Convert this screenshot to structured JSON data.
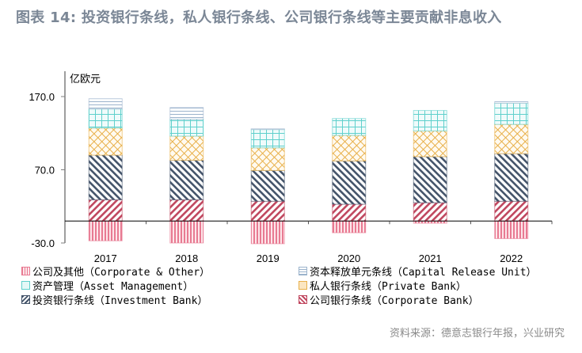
{
  "title": "图表 14: 投资银行条线，私人银行条线、公司银行条线等主要贡献非息收入",
  "source": "资料来源：德意志银行年报，兴业研究",
  "chart_data": {
    "type": "bar",
    "stacked": true,
    "title": "图表 14: 投资银行条线，私人银行条线、公司银行条线等主要贡献非息收入",
    "ylabel": "亿欧元",
    "xlabel": "",
    "ylim": [
      -30,
      170
    ],
    "yticks": [
      -30,
      70,
      170
    ],
    "ytick_labels": [
      "-30.0",
      "70.0",
      "170.0"
    ],
    "grid": false,
    "legend_position": "bottom",
    "categories": [
      "2017",
      "2018",
      "2019",
      "2020",
      "2021",
      "2022"
    ],
    "series": [
      {
        "name": "公司银行条线（Corporate Bank）",
        "key": "corporate_bank",
        "color": "#c0475f",
        "pattern": "diag-down",
        "values": [
          29,
          29,
          27,
          23,
          25,
          27
        ]
      },
      {
        "name": "投资银行条线（Investment Bank）",
        "key": "investment_bank",
        "color": "#44546a",
        "pattern": "diag-up",
        "values": [
          61,
          54,
          42,
          59,
          63,
          65
        ]
      },
      {
        "name": "私人银行条线（Private Bank）",
        "key": "private_bank",
        "color": "#e8b04a",
        "pattern": "crosshatch",
        "values": [
          37,
          33,
          31,
          35,
          35,
          40
        ]
      },
      {
        "name": "资产管理（Asset Management）",
        "key": "asset_management",
        "color": "#5fd0cc",
        "pattern": "grid",
        "values": [
          26,
          23,
          25,
          23,
          28,
          29
        ]
      },
      {
        "name": "资本释放单元条线（Capital Release Unit）",
        "key": "capital_release_unit",
        "color": "#9bb3cc",
        "pattern": "horizontal",
        "values": [
          14,
          16,
          1,
          0,
          0,
          2
        ]
      },
      {
        "name": "公司及其他（Corporate & Other）",
        "key": "corporate_other",
        "color": "#e87a92",
        "pattern": "vertical",
        "values": [
          -27,
          -30,
          -31,
          -16,
          -3,
          -24
        ]
      }
    ],
    "legend": [
      {
        "label": "公司及其他（Corporate & Other）",
        "series": "corporate_other"
      },
      {
        "label": "资本释放单元条线（Capital Release Unit）",
        "series": "capital_release_unit"
      },
      {
        "label": "资产管理（Asset Management）",
        "series": "asset_management"
      },
      {
        "label": "私人银行条线（Private Bank）",
        "series": "private_bank"
      },
      {
        "label": "投资银行条线（Investment Bank）",
        "series": "investment_bank"
      },
      {
        "label": "公司银行条线（Corporate Bank）",
        "series": "corporate_bank"
      }
    ]
  }
}
